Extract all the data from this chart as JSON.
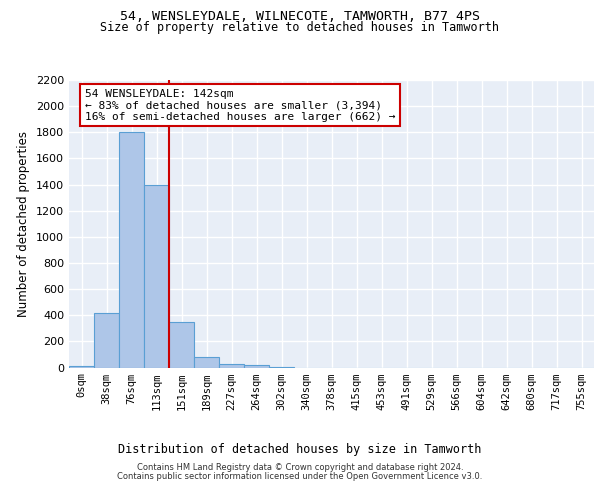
{
  "title1": "54, WENSLEYDALE, WILNECOTE, TAMWORTH, B77 4PS",
  "title2": "Size of property relative to detached houses in Tamworth",
  "xlabel": "Distribution of detached houses by size in Tamworth",
  "ylabel": "Number of detached properties",
  "bin_labels": [
    "0sqm",
    "38sqm",
    "76sqm",
    "113sqm",
    "151sqm",
    "189sqm",
    "227sqm",
    "264sqm",
    "302sqm",
    "340sqm",
    "378sqm",
    "415sqm",
    "453sqm",
    "491sqm",
    "529sqm",
    "566sqm",
    "604sqm",
    "642sqm",
    "680sqm",
    "717sqm",
    "755sqm"
  ],
  "bar_values": [
    15,
    420,
    1800,
    1400,
    350,
    80,
    30,
    20,
    5,
    0,
    0,
    0,
    0,
    0,
    0,
    0,
    0,
    0,
    0,
    0,
    0
  ],
  "bar_color": "#aec6e8",
  "bar_edge_color": "#5a9fd4",
  "vline_pos": 3.5,
  "annotation_title": "54 WENSLEYDALE: 142sqm",
  "annotation_line1": "← 83% of detached houses are smaller (3,394)",
  "annotation_line2": "16% of semi-detached houses are larger (662) →",
  "vline_color": "#cc0000",
  "annotation_box_color": "#ffffff",
  "annotation_box_edge": "#cc0000",
  "ylim": [
    0,
    2200
  ],
  "yticks": [
    0,
    200,
    400,
    600,
    800,
    1000,
    1200,
    1400,
    1600,
    1800,
    2000,
    2200
  ],
  "bg_color": "#e8eef7",
  "grid_color": "#ffffff",
  "footer1": "Contains HM Land Registry data © Crown copyright and database right 2024.",
  "footer2": "Contains public sector information licensed under the Open Government Licence v3.0."
}
